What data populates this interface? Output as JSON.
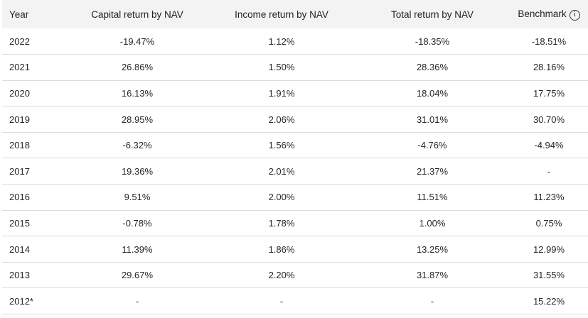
{
  "table": {
    "headers": {
      "year": "Year",
      "capital": "Capital return by NAV",
      "income": "Income return by NAV",
      "total": "Total return by NAV",
      "benchmark": "Benchmark",
      "benchmark_info_glyph": "i"
    },
    "rows": [
      {
        "year": "2022",
        "capital": "-19.47%",
        "income": "1.12%",
        "total": "-18.35%",
        "benchmark": "-18.51%"
      },
      {
        "year": "2021",
        "capital": "26.86%",
        "income": "1.50%",
        "total": "28.36%",
        "benchmark": "28.16%"
      },
      {
        "year": "2020",
        "capital": "16.13%",
        "income": "1.91%",
        "total": "18.04%",
        "benchmark": "17.75%"
      },
      {
        "year": "2019",
        "capital": "28.95%",
        "income": "2.06%",
        "total": "31.01%",
        "benchmark": "30.70%"
      },
      {
        "year": "2018",
        "capital": "-6.32%",
        "income": "1.56%",
        "total": "-4.76%",
        "benchmark": "-4.94%"
      },
      {
        "year": "2017",
        "capital": "19.36%",
        "income": "2.01%",
        "total": "21.37%",
        "benchmark": "-"
      },
      {
        "year": "2016",
        "capital": "9.51%",
        "income": "2.00%",
        "total": "11.51%",
        "benchmark": "11.23%"
      },
      {
        "year": "2015",
        "capital": "-0.78%",
        "income": "1.78%",
        "total": "1.00%",
        "benchmark": "0.75%"
      },
      {
        "year": "2014",
        "capital": "11.39%",
        "income": "1.86%",
        "total": "13.25%",
        "benchmark": "12.99%"
      },
      {
        "year": "2013",
        "capital": "29.67%",
        "income": "2.20%",
        "total": "31.87%",
        "benchmark": "31.55%"
      },
      {
        "year": "2012*",
        "capital": "-",
        "income": "-",
        "total": "-",
        "benchmark": "15.22%"
      }
    ]
  },
  "colors": {
    "header_bg": "#f3f3f3",
    "row_divider": "#dcdcdc",
    "text": "#262626"
  },
  "icons": {
    "benchmark_info": "info-circle-icon"
  }
}
